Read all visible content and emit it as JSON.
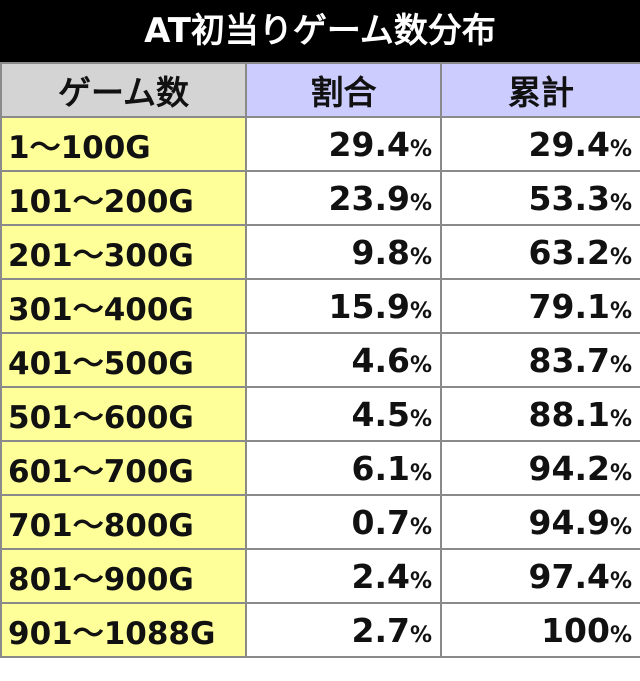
{
  "title": "AT初当りゲーム数分布",
  "table": {
    "header": [
      "ゲーム数",
      "割合",
      "累計"
    ],
    "rows": [
      [
        "1～100G",
        "29.4%",
        "29.4%"
      ],
      [
        "101～200G",
        "23.9%",
        "53.3%"
      ],
      [
        "201～300G",
        "9.8%",
        "63.2%"
      ],
      [
        "301～400G",
        "15.9%",
        "79.1%"
      ],
      [
        "401～500G",
        "4.6%",
        "83.7%"
      ],
      [
        "501～600G",
        "4.5%",
        "88.1%"
      ],
      [
        "601～700G",
        "6.1%",
        "94.2%"
      ],
      [
        "701～800G",
        "0.7%",
        "94.9%"
      ],
      [
        "801～900G",
        "2.4%",
        "97.4%"
      ],
      [
        "901～1088G",
        "2.7%",
        "100%"
      ]
    ]
  }
}
